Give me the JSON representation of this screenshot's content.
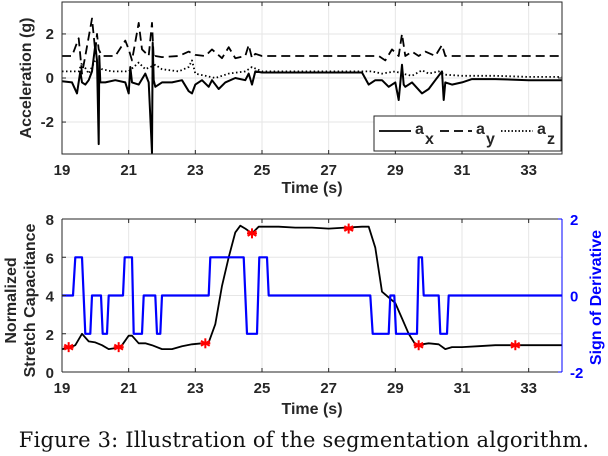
{
  "caption": "Figure 3: Illustration of the segmentation algorithm.",
  "chart_data": [
    {
      "type": "line",
      "title": "",
      "xlabel": "Time (s)",
      "ylabel": "Acceleration (g)",
      "xlim": [
        19,
        34
      ],
      "ylim": [
        -3.45,
        3.45
      ],
      "xticks": [
        19,
        21,
        23,
        25,
        27,
        29,
        31,
        33
      ],
      "yticks": [
        -2,
        0,
        2
      ],
      "grid": true,
      "legend": {
        "position": "lower right",
        "entries": [
          {
            "label": "a",
            "sub": "x",
            "style": "solid"
          },
          {
            "label": "a",
            "sub": "y",
            "style": "dashed"
          },
          {
            "label": "a",
            "sub": "z",
            "style": "dotted"
          }
        ]
      },
      "series": [
        {
          "name": "a_x",
          "style": "solid",
          "x": [
            19,
            19.3,
            19.45,
            19.55,
            19.6,
            19.7,
            19.8,
            19.9,
            20.0,
            20.05,
            20.1,
            20.12,
            20.15,
            20.3,
            20.6,
            20.9,
            21.0,
            21.05,
            21.1,
            21.3,
            21.5,
            21.6,
            21.7,
            21.72,
            21.75,
            21.8,
            22.0,
            22.3,
            22.6,
            22.8,
            22.9,
            23.0,
            23.2,
            23.4,
            23.5,
            23.7,
            23.9,
            24.2,
            24.5,
            24.6,
            24.7,
            24.8,
            25,
            26,
            27,
            28,
            28.2,
            28.4,
            28.6,
            28.8,
            29.0,
            29.1,
            29.2,
            29.25,
            29.3,
            29.5,
            29.8,
            30.0,
            30.2,
            30.4,
            30.45,
            30.5,
            30.7,
            31.0,
            31.3,
            32,
            33,
            34
          ],
          "y": [
            -0.15,
            -0.2,
            -0.7,
            0.3,
            -0.2,
            -0.3,
            -0.1,
            0.3,
            1.5,
            0.8,
            -3.0,
            1.0,
            -0.2,
            -0.2,
            -0.1,
            -0.2,
            -0.7,
            0.5,
            -0.2,
            -0.3,
            0.2,
            -0.2,
            -3.4,
            1.6,
            -0.1,
            -0.4,
            -0.2,
            -0.2,
            -0.1,
            -0.6,
            -0.7,
            -0.3,
            -0.1,
            -0.4,
            -0.1,
            -0.5,
            -0.2,
            0.0,
            -0.1,
            0.2,
            -0.3,
            0.3,
            0.25,
            0.25,
            0.25,
            0.25,
            -0.3,
            -0.1,
            -0.1,
            -0.4,
            -0.2,
            -1.0,
            0.6,
            -0.3,
            -0.4,
            -0.2,
            -0.7,
            -0.5,
            -0.1,
            0.3,
            -1.0,
            -0.2,
            -0.3,
            -0.2,
            -0.05,
            -0.05,
            -0.1,
            -0.1
          ]
        },
        {
          "name": "a_y",
          "style": "dashed",
          "x": [
            19,
            19.3,
            19.5,
            19.6,
            19.7,
            19.9,
            20.0,
            20.05,
            20.1,
            20.2,
            20.4,
            20.6,
            20.9,
            21.0,
            21.1,
            21.3,
            21.4,
            21.6,
            21.7,
            21.75,
            21.8,
            22.0,
            22.5,
            22.8,
            23.0,
            23.3,
            23.5,
            23.8,
            24.0,
            24.2,
            24.5,
            24.6,
            24.7,
            24.8,
            25,
            26,
            27,
            28,
            28.5,
            28.7,
            28.9,
            29.1,
            29.2,
            29.3,
            29.5,
            29.7,
            29.9,
            30.2,
            30.4,
            30.5,
            31,
            32,
            33,
            34
          ],
          "y": [
            1.0,
            1.0,
            1.8,
            0.2,
            1.0,
            2.7,
            1.2,
            2.0,
            1.3,
            1.0,
            1.0,
            1.0,
            1.7,
            1.3,
            0.8,
            2.5,
            1.3,
            1.0,
            2.5,
            0.9,
            1.0,
            0.95,
            1.0,
            1.2,
            1.05,
            1.0,
            1.3,
            0.9,
            1.4,
            0.9,
            1.0,
            1.5,
            0.9,
            1.1,
            1.0,
            1.0,
            1.0,
            1.0,
            1.0,
            0.8,
            1.3,
            1.0,
            2.0,
            1.0,
            1.2,
            1.0,
            1.2,
            1.0,
            1.5,
            1.0,
            1.0,
            1.0,
            1.0,
            1.0
          ]
        },
        {
          "name": "a_z",
          "style": "dotted",
          "x": [
            19,
            19.5,
            19.6,
            19.8,
            20.0,
            20.2,
            20.5,
            21.0,
            21.3,
            21.5,
            21.8,
            22.0,
            22.5,
            22.8,
            22.9,
            23.0,
            23.3,
            23.6,
            24.0,
            24.5,
            24.7,
            25,
            26,
            27,
            28,
            28.3,
            28.6,
            29.0,
            29.2,
            29.5,
            29.8,
            30.0,
            30.3,
            30.5,
            31,
            32,
            33,
            34
          ],
          "y": [
            0.3,
            0.3,
            0.7,
            0.2,
            0.8,
            0.4,
            0.3,
            0.3,
            0.7,
            0.4,
            0.6,
            0.4,
            0.3,
            0.5,
            0.8,
            0.2,
            0.1,
            0.0,
            0.2,
            0.3,
            0.5,
            0.3,
            0.3,
            0.3,
            0.3,
            0.3,
            0.2,
            0.3,
            0.2,
            0.1,
            0.35,
            0.2,
            0.3,
            0.15,
            0.1,
            0.1,
            0.05,
            0.05
          ]
        }
      ]
    },
    {
      "type": "line",
      "title": "",
      "xlabel": "Time (s)",
      "ylabel": "Normalized Stretch Capacitance",
      "y2label": "Sign of Derivative",
      "xlim": [
        19,
        34
      ],
      "ylim": [
        0,
        8
      ],
      "y2lim": [
        -2,
        2
      ],
      "xticks": [
        19,
        21,
        23,
        25,
        27,
        29,
        31,
        33
      ],
      "yticks": [
        0,
        2,
        4,
        6,
        8
      ],
      "y2ticks": [
        -2,
        0,
        2
      ],
      "grid": true,
      "series": [
        {
          "name": "Normalized Stretch Capacitance",
          "axis": "left",
          "color": "#000000",
          "x": [
            19,
            19.2,
            19.4,
            19.6,
            19.8,
            20.0,
            20.2,
            20.4,
            20.6,
            20.8,
            21.0,
            21.1,
            21.3,
            21.5,
            21.7,
            22.0,
            22.3,
            22.6,
            22.9,
            23.2,
            23.4,
            23.6,
            23.8,
            24.0,
            24.2,
            24.35,
            24.5,
            24.7,
            24.9,
            25.1,
            25.5,
            26,
            26.5,
            27,
            27.5,
            28.0,
            28.2,
            28.4,
            28.6,
            28.8,
            29.0,
            29.2,
            29.4,
            29.6,
            29.8,
            30.0,
            30.3,
            30.5,
            30.7,
            31.0,
            31.5,
            32,
            32.5,
            33,
            33.5,
            34
          ],
          "y": [
            1.2,
            1.25,
            1.4,
            2.0,
            1.6,
            1.55,
            1.4,
            1.2,
            1.25,
            1.4,
            1.9,
            1.9,
            1.5,
            1.5,
            1.4,
            1.2,
            1.2,
            1.35,
            1.45,
            1.5,
            1.55,
            2.5,
            4.5,
            6.0,
            7.3,
            7.65,
            7.5,
            7.25,
            7.6,
            7.6,
            7.6,
            7.55,
            7.55,
            7.5,
            7.55,
            7.6,
            7.6,
            6.5,
            4.2,
            3.9,
            3.6,
            2.8,
            2.0,
            1.45,
            1.45,
            1.5,
            1.45,
            1.2,
            1.3,
            1.3,
            1.35,
            1.4,
            1.4,
            1.4,
            1.4,
            1.4
          ]
        },
        {
          "name": "Sign of Derivative",
          "axis": "right",
          "color": "#0000ff",
          "x": [
            19,
            19.33,
            19.4,
            19.6,
            19.7,
            19.85,
            19.9,
            20.17,
            20.22,
            20.35,
            20.4,
            20.83,
            20.88,
            21.1,
            21.15,
            21.4,
            21.45,
            21.8,
            21.85,
            21.95,
            22.0,
            23.4,
            23.45,
            24.45,
            24.55,
            24.85,
            24.92,
            25.15,
            25.2,
            28.25,
            28.32,
            28.8,
            28.85,
            28.97,
            29.02,
            29.65,
            29.7,
            29.8,
            29.85,
            30.3,
            30.35,
            30.55,
            30.6,
            34
          ],
          "y": [
            0,
            0,
            1,
            1,
            -1,
            -1,
            0,
            0,
            -1,
            -1,
            0,
            0,
            1,
            1,
            -1,
            -1,
            0,
            0,
            -1,
            -1,
            0,
            0,
            1,
            1,
            -1,
            -1,
            1,
            1,
            0,
            0,
            -1,
            -1,
            0,
            0,
            -1,
            -1,
            1,
            1,
            0,
            0,
            -1,
            -1,
            0,
            0
          ]
        },
        {
          "name": "Segment points",
          "axis": "left",
          "color": "#ff0000",
          "marker": "asterisk",
          "x": [
            19.2,
            20.7,
            23.3,
            24.7,
            27.6,
            29.7,
            32.6
          ],
          "y": [
            1.3,
            1.3,
            1.5,
            7.25,
            7.5,
            1.4,
            1.4
          ]
        }
      ]
    }
  ]
}
